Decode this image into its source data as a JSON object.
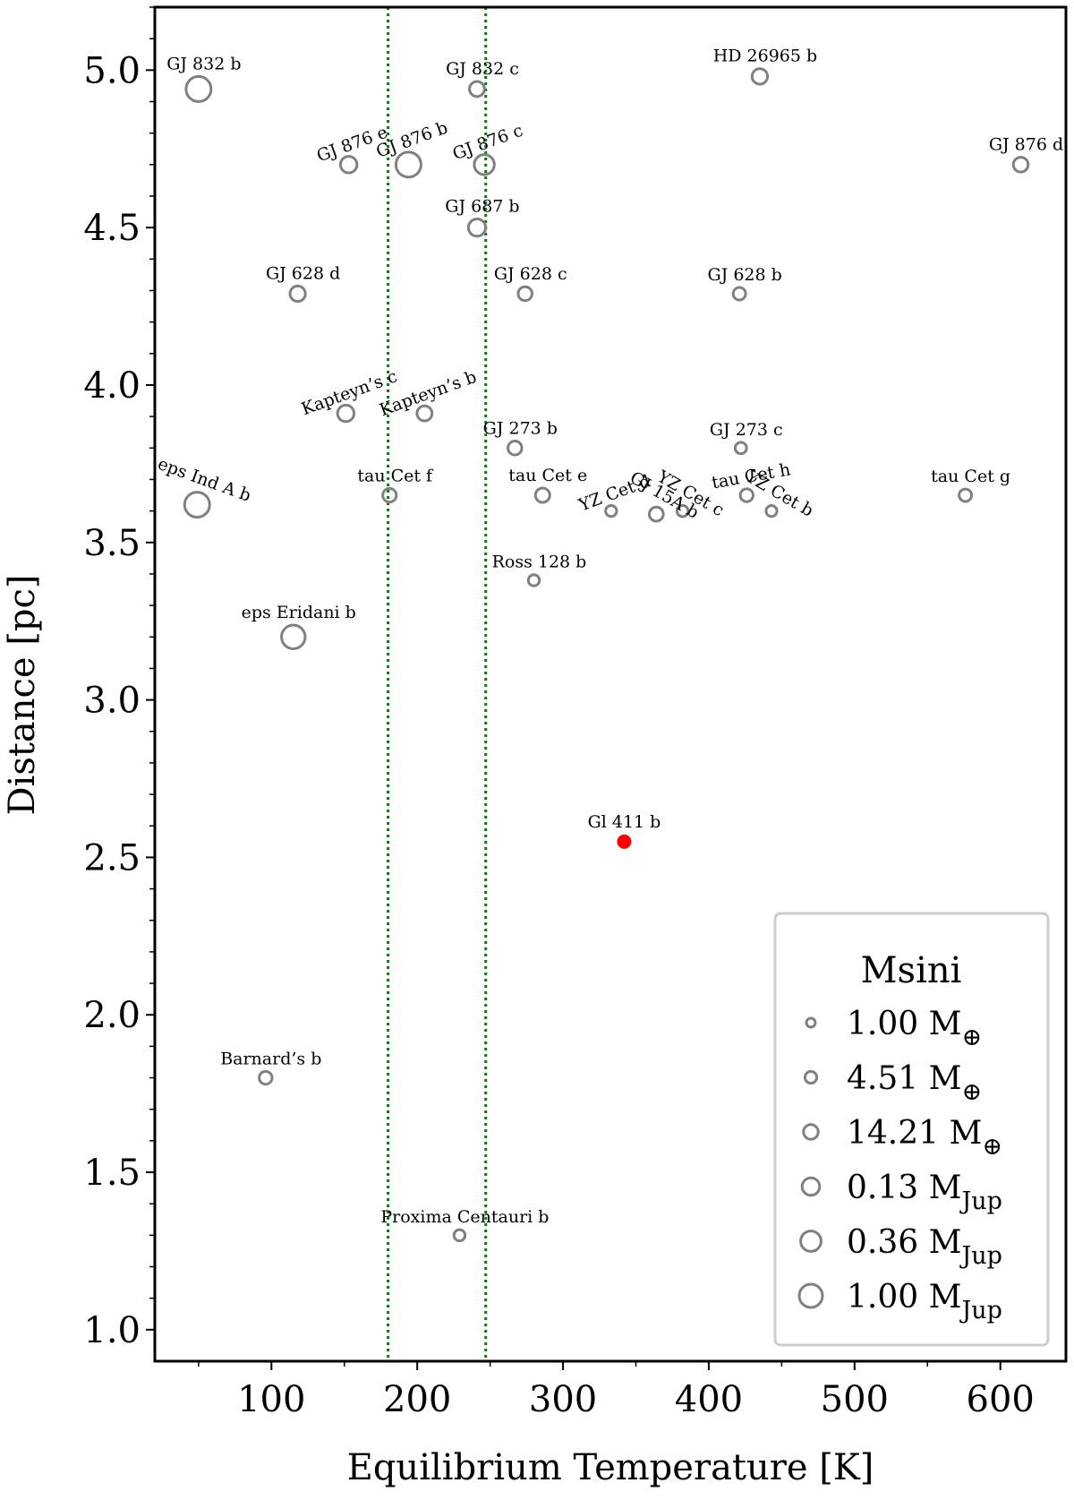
{
  "chart_data": {
    "type": "scatter",
    "xlabel": "Equilibrium Temperature [K]",
    "ylabel": "Distance [pc]",
    "xlim": [
      20,
      645
    ],
    "ylim": [
      0.9,
      5.2
    ],
    "xticks": [
      100,
      200,
      300,
      400,
      500,
      600
    ],
    "yticks": [
      1.0,
      1.5,
      2.0,
      2.5,
      3.0,
      3.5,
      4.0,
      4.5,
      5.0
    ],
    "ytick_labels": [
      "1.0",
      "1.5",
      "2.0",
      "2.5",
      "3.0",
      "3.5",
      "4.0",
      "4.5",
      "5.0"
    ],
    "grid": false,
    "marker_color": "#808080",
    "highlight_color": "#ff0000",
    "vline_color": "#008000",
    "vlines": [
      180,
      247
    ],
    "points": [
      {
        "name": "GJ 832 b",
        "x": 50,
        "y": 4.94,
        "size": 1.0,
        "rot": 0
      },
      {
        "name": "GJ 832 c",
        "x": 241,
        "y": 4.94,
        "size": 0.3,
        "rot": 0
      },
      {
        "name": "HD 26965 b",
        "x": 435,
        "y": 4.98,
        "size": 0.33,
        "rot": 0
      },
      {
        "name": "GJ 876 e",
        "x": 153,
        "y": 4.7,
        "size": 0.4,
        "rot": -20
      },
      {
        "name": "GJ 876 b",
        "x": 194,
        "y": 4.7,
        "size": 1.0,
        "rot": -20
      },
      {
        "name": "GJ 876 c",
        "x": 246,
        "y": 4.7,
        "size": 0.65,
        "rot": -20
      },
      {
        "name": "GJ 876 d",
        "x": 614,
        "y": 4.7,
        "size": 0.28,
        "rot": 0
      },
      {
        "name": "GJ 687 b",
        "x": 241,
        "y": 4.5,
        "size": 0.45,
        "rot": 0
      },
      {
        "name": "GJ 628 d",
        "x": 118,
        "y": 4.29,
        "size": 0.32,
        "rot": 0
      },
      {
        "name": "GJ 628 c",
        "x": 274,
        "y": 4.29,
        "size": 0.22,
        "rot": 0
      },
      {
        "name": "GJ 628 b",
        "x": 421,
        "y": 4.29,
        "size": 0.12,
        "rot": 0
      },
      {
        "name": "Kapteyn’s c",
        "x": 151,
        "y": 3.91,
        "size": 0.4,
        "rot": -20
      },
      {
        "name": "Kapteyn’s b",
        "x": 205,
        "y": 3.91,
        "size": 0.3,
        "rot": -20
      },
      {
        "name": "GJ 273 b",
        "x": 267,
        "y": 3.8,
        "size": 0.22,
        "rot": 0
      },
      {
        "name": "GJ 273 c",
        "x": 422,
        "y": 3.8,
        "size": 0.05,
        "rot": 0
      },
      {
        "name": "tau Cet f",
        "x": 181,
        "y": 3.65,
        "size": 0.2,
        "rot": 0
      },
      {
        "name": "tau Cet e",
        "x": 286,
        "y": 3.65,
        "size": 0.25,
        "rot": 0
      },
      {
        "name": "tau Cet h",
        "x": 426,
        "y": 3.65,
        "size": 0.15,
        "rot": -10
      },
      {
        "name": "tau Cet g",
        "x": 576,
        "y": 3.65,
        "size": 0.12,
        "rot": 0
      },
      {
        "name": "eps Ind A b",
        "x": 49,
        "y": 3.62,
        "size": 1.0,
        "rot": 20
      },
      {
        "name": "YZ Cet d",
        "x": 333,
        "y": 3.6,
        "size": 0.02,
        "rot": -20
      },
      {
        "name": "GJ 15A b",
        "x": 364,
        "y": 3.59,
        "size": 0.23,
        "rot": 30
      },
      {
        "name": "YZ Cet c",
        "x": 382,
        "y": 3.6,
        "size": 0.03,
        "rot": 30
      },
      {
        "name": "YZ Cet b",
        "x": 443,
        "y": 3.6,
        "size": 0.01,
        "rot": 30
      },
      {
        "name": "Ross 128 b",
        "x": 280,
        "y": 3.38,
        "size": 0.03,
        "rot": 0
      },
      {
        "name": "eps Eridani b",
        "x": 115,
        "y": 3.2,
        "size": 0.9,
        "rot": 0
      },
      {
        "name": "Barnard’s b",
        "x": 96,
        "y": 1.8,
        "size": 0.15,
        "rot": 0
      },
      {
        "name": "Proxima Centauri b",
        "x": 229,
        "y": 1.3,
        "size": 0.03,
        "rot": 0
      }
    ],
    "highlight": {
      "name": "Gl 411 b",
      "x": 342,
      "y": 2.55
    },
    "legend": {
      "title": "Msini",
      "position": "lower-right",
      "entries": [
        {
          "label": "1.00 M",
          "sub": "⊕",
          "size": 0
        },
        {
          "label": "4.51 M",
          "sub": "⊕",
          "size": 0.2
        },
        {
          "label": "14.21 M",
          "sub": "⊕",
          "size": 0.4
        },
        {
          "label": "0.13 M",
          "sub": "Jup",
          "size": 0.6
        },
        {
          "label": "0.36 M",
          "sub": "Jup",
          "size": 0.8
        },
        {
          "label": "1.00 M",
          "sub": "Jup",
          "size": 1.0
        }
      ]
    }
  }
}
